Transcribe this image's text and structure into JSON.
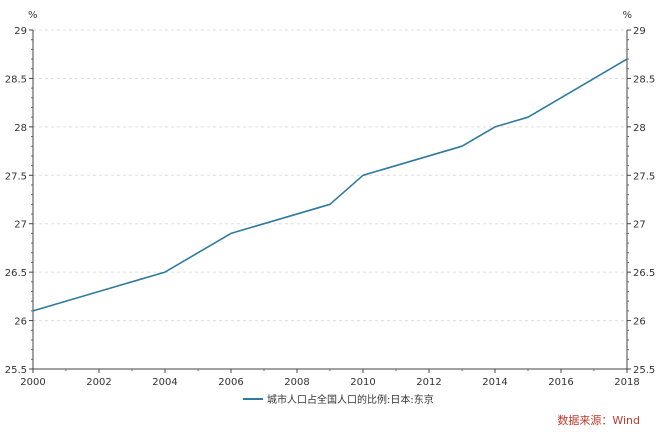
{
  "chart_data": {
    "type": "line",
    "title": "",
    "xlabel": "",
    "ylabel": "",
    "y_unit_left": "%",
    "y_unit_right": "%",
    "xlim": [
      2000,
      2018
    ],
    "ylim": [
      25.5,
      29
    ],
    "x_ticks": [
      2000,
      2002,
      2004,
      2006,
      2008,
      2010,
      2012,
      2014,
      2016,
      2018
    ],
    "y_ticks": [
      25.5,
      26,
      26.5,
      27,
      27.5,
      28,
      28.5,
      29
    ],
    "y_tick_labels": [
      "25.5",
      "26",
      "26.5",
      "27",
      "27.5",
      "28",
      "28.5",
      "29"
    ],
    "grid": "horizontal-dashed",
    "legend_position": "bottom-center",
    "series": [
      {
        "name": "城市人口占全国人口的比例:日本:东京",
        "color": "#2e7aa0",
        "x": [
          2000,
          2004,
          2006,
          2009,
          2010,
          2013,
          2014,
          2015,
          2018
        ],
        "values": [
          26.1,
          26.5,
          26.9,
          27.2,
          27.5,
          27.8,
          28.0,
          28.1,
          28.7
        ]
      }
    ],
    "source": "数据来源：Wind"
  }
}
